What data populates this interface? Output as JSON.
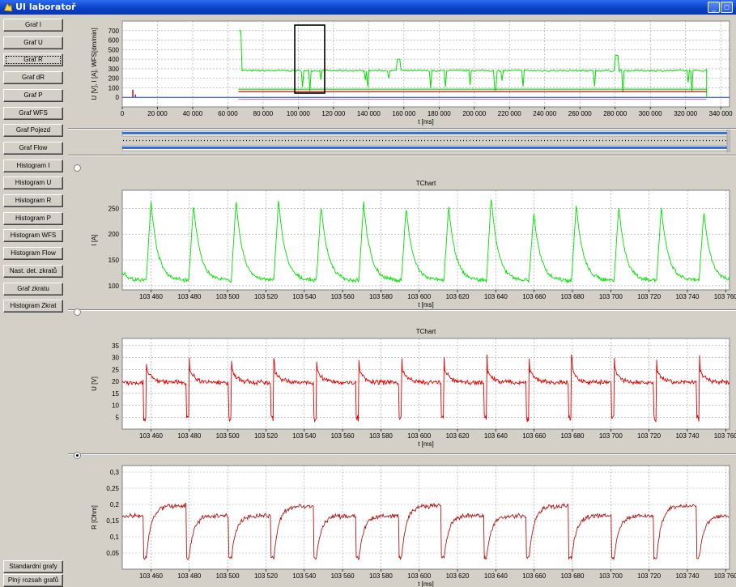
{
  "window": {
    "title": "UI laboratoř"
  },
  "sidebar": {
    "items": [
      {
        "label": "Graf I"
      },
      {
        "label": "Graf U"
      },
      {
        "label": "Graf R"
      },
      {
        "label": "Graf dR"
      },
      {
        "label": "Graf P"
      },
      {
        "label": "Graf WFS"
      },
      {
        "label": "Graf Pojezd"
      },
      {
        "label": "Graf Flow"
      },
      {
        "label": "Histogram I"
      },
      {
        "label": "Histogram U"
      },
      {
        "label": "Histogram R"
      },
      {
        "label": "Histogram P"
      },
      {
        "label": "Histogram WFS"
      },
      {
        "label": "Histogram Flow"
      },
      {
        "label": "Nast. det. zkratů"
      },
      {
        "label": "Graf zkratu"
      },
      {
        "label": "Histogram Zkrat"
      }
    ],
    "bottom": [
      {
        "label": "Standardní grafy"
      },
      {
        "label": "Plný rozsah grafů"
      }
    ]
  },
  "colors": {
    "green": "#00e000",
    "red": "#e00000",
    "darkred": "#b01818",
    "blue": "#2050d0"
  },
  "chart_data": [
    {
      "type": "line",
      "title": "",
      "xlabel": "t [ms]",
      "ylabel": "U [V], I [A], WFS[dm/min]",
      "xlim": [
        0,
        345000
      ],
      "ylim": [
        -100,
        800
      ],
      "xticks": [
        "0",
        "20 000",
        "40 000",
        "60 000",
        "80 000",
        "100 000",
        "120 000",
        "140 000",
        "160 000",
        "180 000",
        "200 000",
        "220 000",
        "240 000",
        "260 000",
        "280 000",
        "300 000",
        "320 000",
        "340 000"
      ],
      "yticks": [
        "0",
        "100",
        "200",
        "300",
        "400",
        "500",
        "600",
        "700"
      ],
      "series": [
        {
          "color": "green",
          "start": 66000,
          "end": 332000,
          "level": 280,
          "peak": 700
        },
        {
          "color": "red",
          "start": 66000,
          "end": 332000,
          "level": 60,
          "peak": 100
        },
        {
          "color": "blue",
          "start": 66000,
          "end": 332000,
          "level": 0,
          "peak": 0
        }
      ],
      "selection": [
        98000,
        115000
      ]
    },
    {
      "type": "line",
      "title": "TChart",
      "xlabel": "t [ms]",
      "ylabel": "I [A]",
      "xlim": [
        103445,
        103762
      ],
      "ylim": [
        92,
        285
      ],
      "xticks": [
        "103 460",
        "103 480",
        "103 500",
        "103 520",
        "103 540",
        "103 560",
        "103 580",
        "103 600",
        "103 620",
        "103 640",
        "103 660",
        "103 680",
        "103 700",
        "103 720",
        "103 740",
        "103 760"
      ],
      "yticks": [
        "100",
        "150",
        "200",
        "250"
      ],
      "color": "green",
      "baseline": 110,
      "peaks": [
        265,
        258,
        265,
        268,
        257,
        262,
        253,
        255,
        273,
        243,
        258,
        255,
        252,
        245
      ]
    },
    {
      "type": "line",
      "title": "TChart",
      "xlabel": "t [ms]",
      "ylabel": "U [V]",
      "xlim": [
        103445,
        103762
      ],
      "ylim": [
        0,
        38
      ],
      "xticks": [
        "103 460",
        "103 480",
        "103 500",
        "103 520",
        "103 540",
        "103 560",
        "103 580",
        "103 600",
        "103 620",
        "103 640",
        "103 660",
        "103 680",
        "103 700",
        "103 720",
        "103 740",
        "103 760"
      ],
      "yticks": [
        "5",
        "10",
        "15",
        "20",
        "25",
        "30",
        "35"
      ],
      "color": "red",
      "baseline": 19.5,
      "dip": 3
    },
    {
      "type": "line",
      "title": "",
      "xlabel": "t [ms]",
      "ylabel": "R [Ohm]",
      "xlim": [
        103445,
        103762
      ],
      "ylim": [
        0,
        0.32
      ],
      "xticks": [
        "103 460",
        "103 480",
        "103 500",
        "103 520",
        "103 540",
        "103 560",
        "103 580",
        "103 600",
        "103 620",
        "103 640",
        "103 660",
        "103 680",
        "103 700",
        "103 720",
        "103 740",
        "103 760"
      ],
      "yticks": [
        "0,05",
        "0,1",
        "0,15",
        "0,2",
        "0,25",
        "0,3"
      ],
      "color": "darkred",
      "baseline": 0.165,
      "dip": 0.03
    }
  ]
}
